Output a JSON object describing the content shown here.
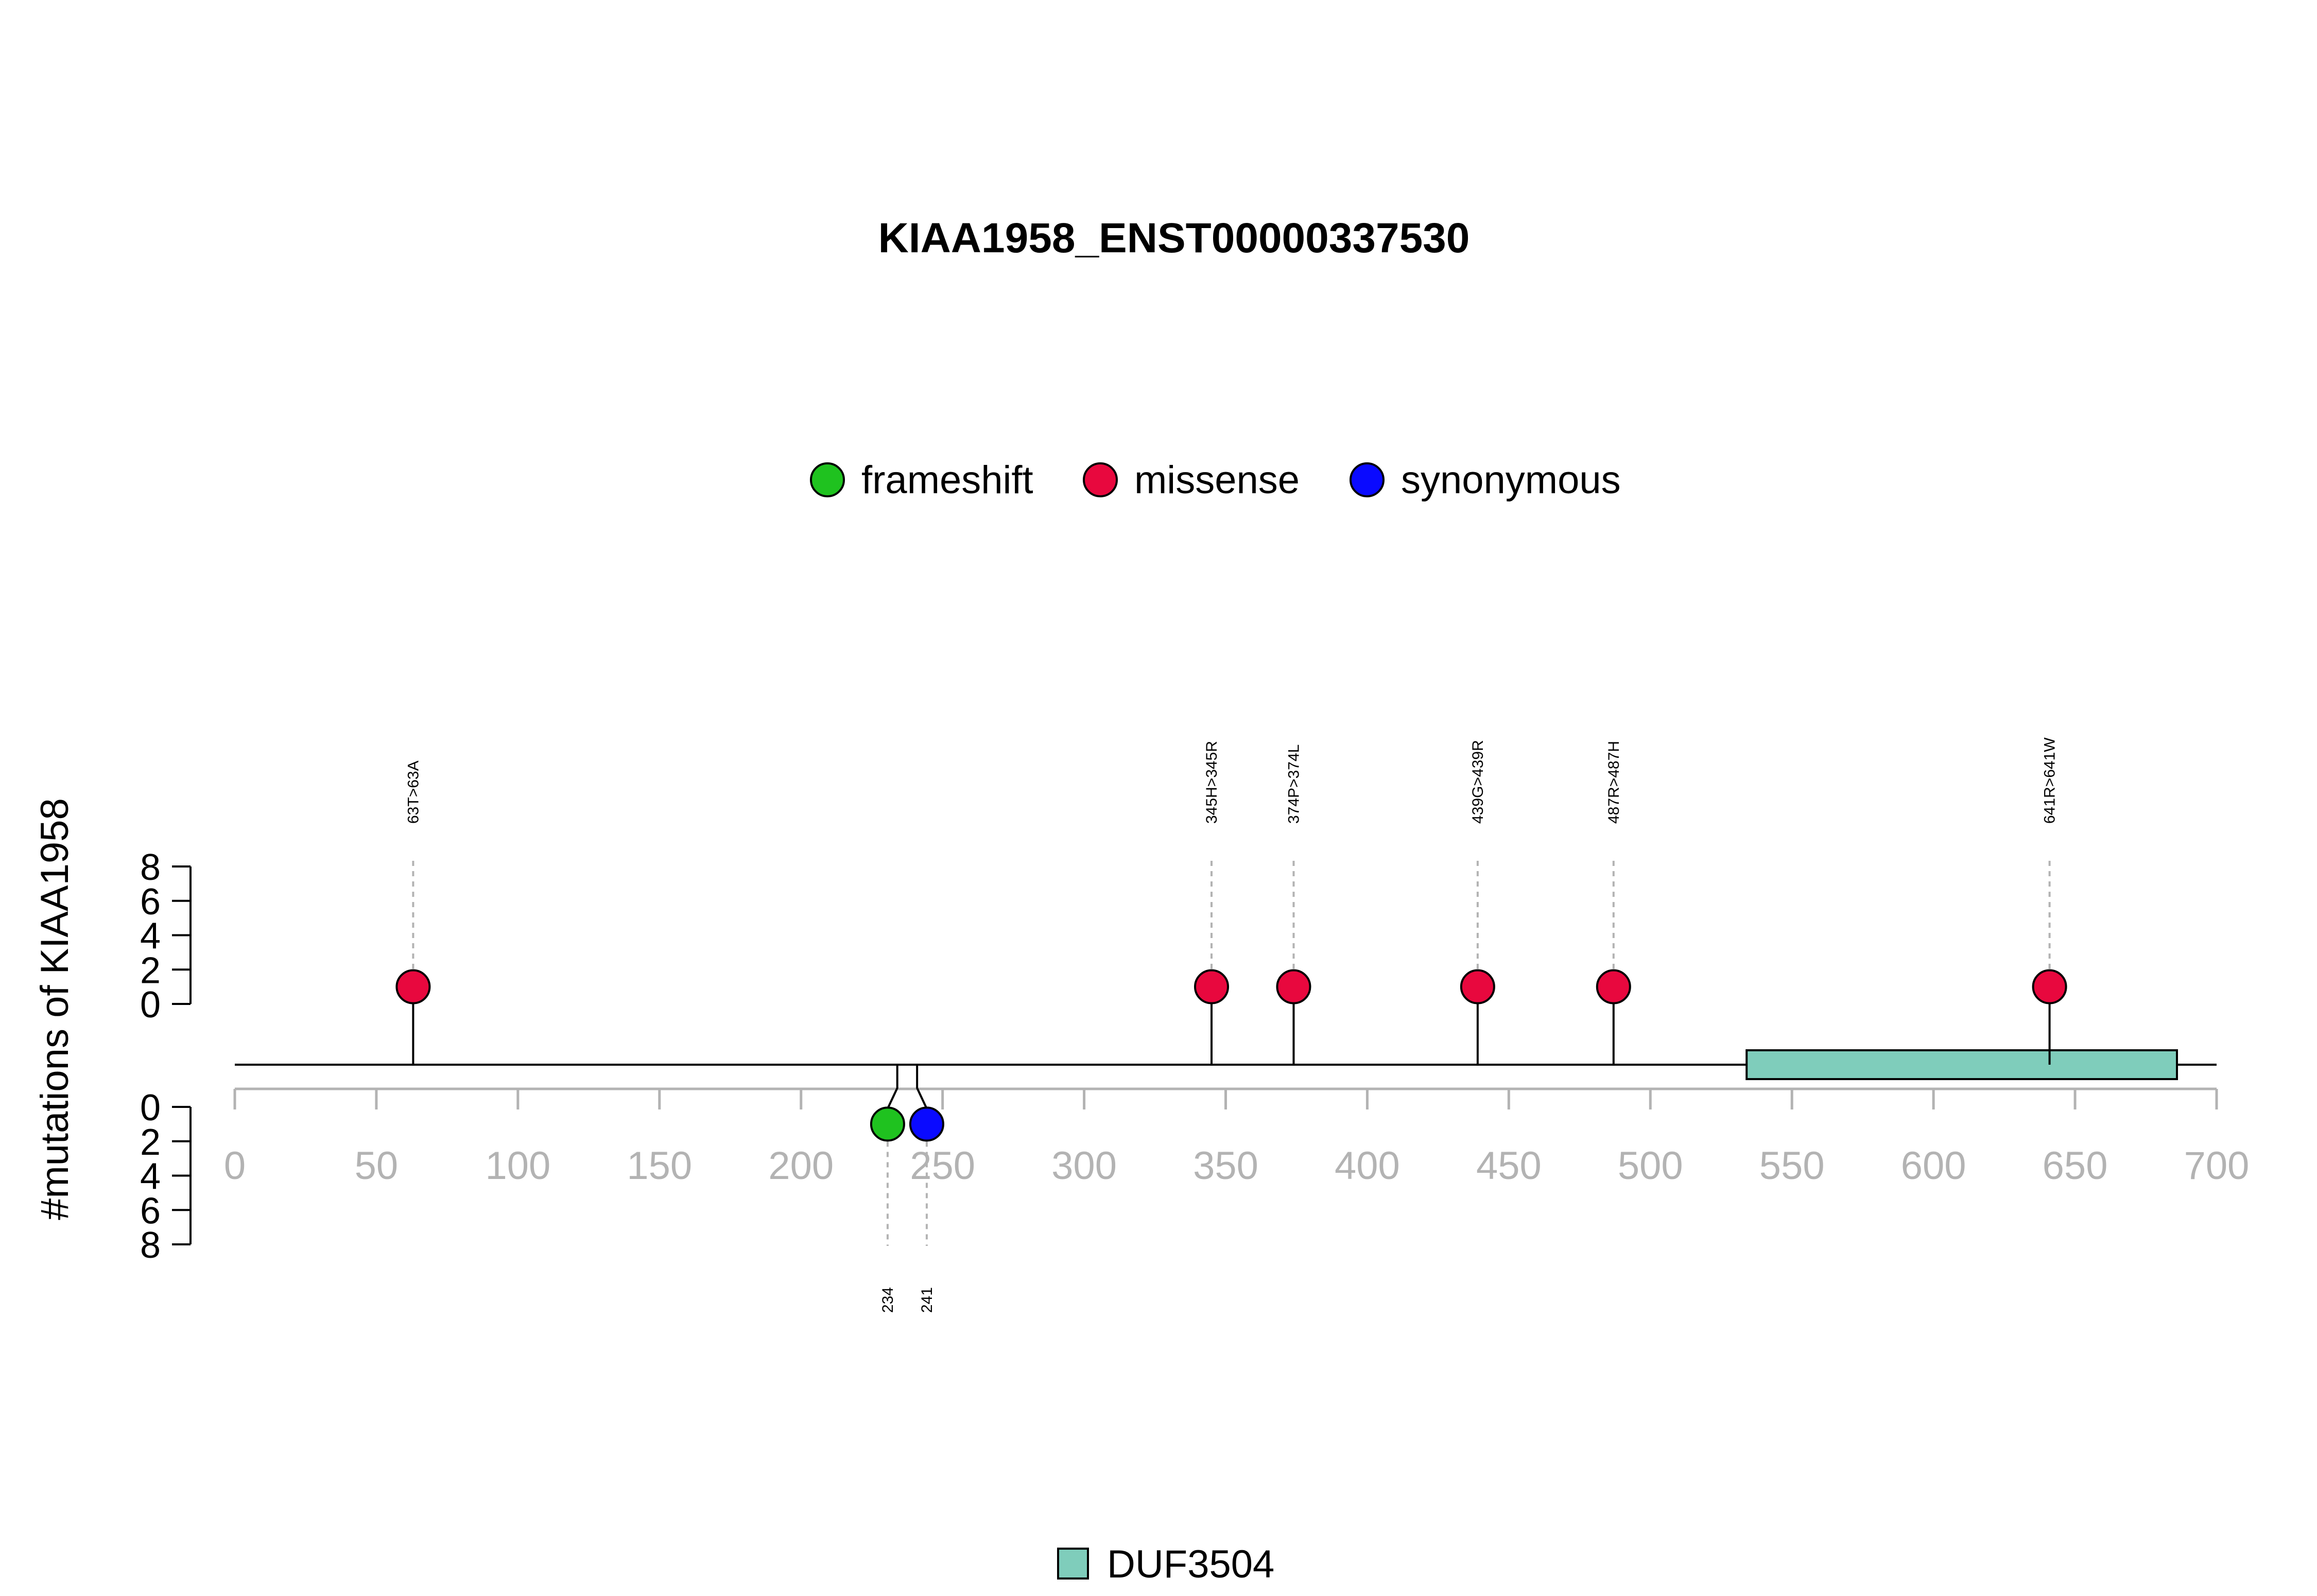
{
  "chart_data": {
    "type": "lollipop",
    "title": "KIAA1958_ENST00000337530",
    "ylabel": "#mutations of KIAA1958",
    "xlim": [
      0,
      700
    ],
    "x_ticks": [
      "0",
      "50",
      "100",
      "150",
      "200",
      "250",
      "300",
      "350",
      "400",
      "450",
      "500",
      "550",
      "600",
      "650",
      "700"
    ],
    "y_ticks_top": [
      "8",
      "6",
      "4",
      "2",
      "0"
    ],
    "y_ticks_bottom": [
      "0",
      "2",
      "4",
      "6",
      "8"
    ],
    "ylim": [
      0,
      8
    ],
    "legend": [
      {
        "label": "frameshift",
        "color": "#1fc21f"
      },
      {
        "label": "missense",
        "color": "#e8083e"
      },
      {
        "label": "synonymous",
        "color": "#0a0aff"
      }
    ],
    "mutations": [
      {
        "position": 63,
        "label": "63T>63A",
        "type": "missense",
        "count": 1,
        "side": "top"
      },
      {
        "position": 345,
        "label": "345H>345R",
        "type": "missense",
        "count": 1,
        "side": "top"
      },
      {
        "position": 374,
        "label": "374P>374L",
        "type": "missense",
        "count": 1,
        "side": "top"
      },
      {
        "position": 439,
        "label": "439G>439R",
        "type": "missense",
        "count": 1,
        "side": "top"
      },
      {
        "position": 487,
        "label": "487R>487H",
        "type": "missense",
        "count": 1,
        "side": "top"
      },
      {
        "position": 641,
        "label": "641R>641W",
        "type": "missense",
        "count": 1,
        "side": "top"
      },
      {
        "position": 234,
        "label": "234",
        "type": "frameshift",
        "count": 1,
        "side": "bottom"
      },
      {
        "position": 241,
        "label": "241",
        "type": "synonymous",
        "count": 1,
        "side": "bottom"
      }
    ],
    "domains": [
      {
        "name": "DUF3504",
        "start": 534,
        "end": 686,
        "color": "#7fcdbb"
      }
    ]
  }
}
